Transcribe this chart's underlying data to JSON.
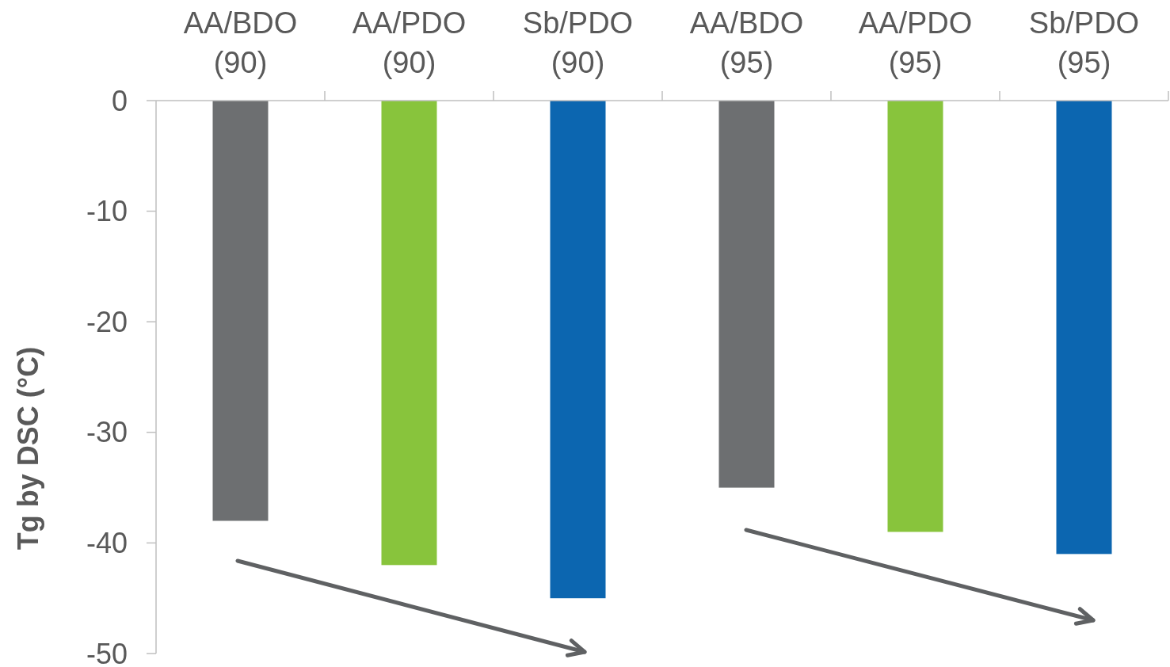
{
  "chart_data": {
    "type": "bar",
    "ylabel": "Tg  by DSC (°C)",
    "categories": [
      "AA/BDO (90)",
      "AA/PDO (90)",
      "Sb/PDO (90)",
      "AA/BDO (95)",
      "AA/PDO (95)",
      "Sb/PDO (95)"
    ],
    "values": [
      -38,
      -42,
      -45,
      -35,
      -39,
      -41
    ],
    "colors": [
      "#6d6f71",
      "#88c43c",
      "#0c66b0",
      "#6d6f71",
      "#88c43c",
      "#0c66b0"
    ],
    "ylim": [
      -50,
      0
    ],
    "yticks": [
      -50,
      -40,
      -30,
      -20,
      -10,
      0
    ],
    "grid": false
  }
}
